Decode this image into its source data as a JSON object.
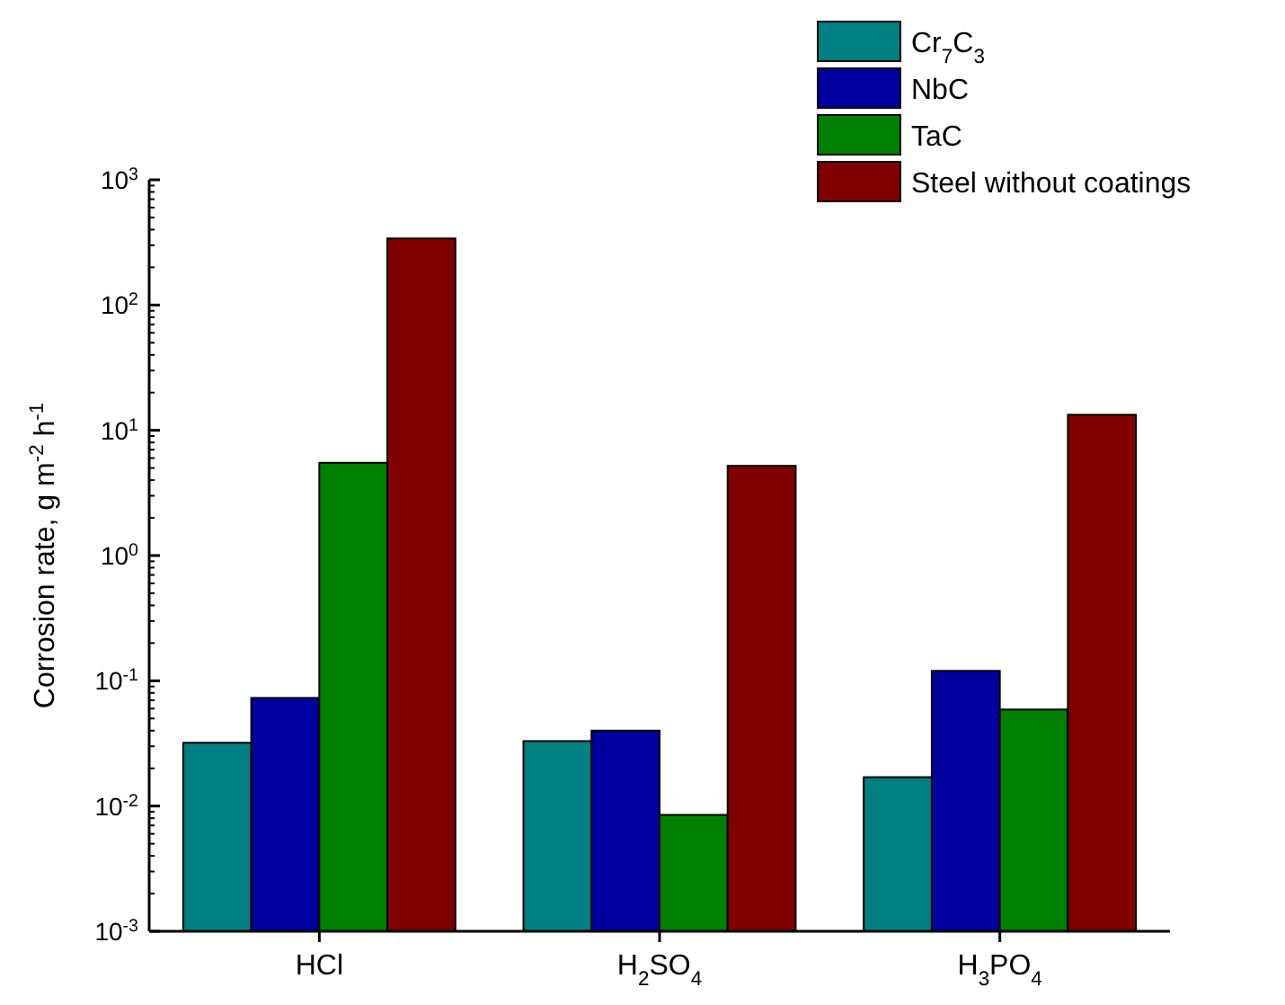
{
  "chart_data": {
    "type": "bar",
    "ylabel": "Corrosion rate, g m$^{-2}$ h$^{-1}$",
    "categories": [
      "HCl",
      "H$_{2}$SO$_{4}$",
      "H$_{3}$PO$_{4}$"
    ],
    "series": [
      {
        "name": "Cr$_{7}$C$_{3}$",
        "color": "#008080",
        "values": [
          0.032,
          0.033,
          0.017
        ]
      },
      {
        "name": "NbC",
        "color": "#0000a0",
        "values": [
          0.073,
          0.04,
          0.12
        ]
      },
      {
        "name": "TaC",
        "color": "#008000",
        "values": [
          5.5,
          0.0085,
          0.059
        ]
      },
      {
        "name": "Steel without coatings",
        "color": "#800000",
        "values": [
          340,
          5.2,
          13.3
        ]
      }
    ],
    "log": true,
    "ylim": [
      0.001,
      1000
    ],
    "yticks": [
      {
        "value": 0.001,
        "label": "10$^{-3}$"
      },
      {
        "value": 0.01,
        "label": "10$^{-2}$"
      },
      {
        "value": 0.1,
        "label": "10$^{-1}$"
      },
      {
        "value": 1,
        "label": "10$^{0}$"
      },
      {
        "value": 10,
        "label": "10$^{1}$"
      },
      {
        "value": 100,
        "label": "10$^{2}$"
      },
      {
        "value": 1000,
        "label": "10$^{3}$"
      }
    ],
    "grid": false,
    "legend": "top right"
  }
}
